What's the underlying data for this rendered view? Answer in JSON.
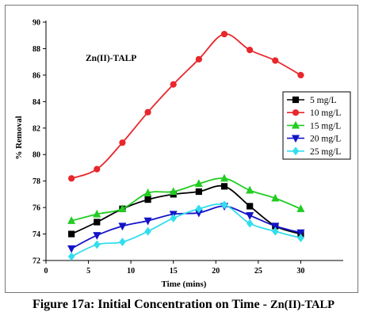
{
  "chart_data": {
    "type": "line",
    "annotation": "Zn(II)-TALP",
    "xlabel": "Time (mins)",
    "ylabel": "% Removal",
    "xlim": [
      0,
      35
    ],
    "ylim": [
      72,
      90
    ],
    "xticks": [
      0,
      5,
      10,
      15,
      20,
      25,
      30
    ],
    "yticks": [
      72,
      74,
      76,
      78,
      80,
      82,
      84,
      86,
      88,
      90
    ],
    "grid": false,
    "legend_position": "right",
    "series": [
      {
        "name": "5 mg/L",
        "color": "#000000",
        "marker": "square",
        "x": [
          3,
          6,
          9,
          12,
          15,
          18,
          21,
          24,
          27,
          30
        ],
        "y": [
          74.0,
          74.9,
          75.9,
          76.6,
          77.0,
          77.2,
          77.6,
          76.1,
          74.6,
          74.0
        ]
      },
      {
        "name": "10 mg/L",
        "color": "#e8262b",
        "marker": "circle",
        "x": [
          3,
          6,
          9,
          12,
          15,
          18,
          21,
          24,
          27,
          30
        ],
        "y": [
          78.2,
          78.9,
          80.9,
          83.2,
          85.3,
          87.2,
          89.1,
          87.9,
          87.1,
          86.0
        ]
      },
      {
        "name": "15 mg/L",
        "color": "#22cc22",
        "marker": "triangle-up",
        "x": [
          3,
          6,
          9,
          12,
          15,
          18,
          21,
          24,
          27,
          30
        ],
        "y": [
          75.0,
          75.5,
          75.9,
          77.1,
          77.2,
          77.8,
          78.2,
          77.3,
          76.7,
          75.9
        ]
      },
      {
        "name": "20 mg/L",
        "color": "#1414c8",
        "marker": "triangle-down",
        "x": [
          3,
          6,
          9,
          12,
          15,
          18,
          21,
          24,
          27,
          30
        ],
        "y": [
          72.9,
          73.9,
          74.6,
          75.0,
          75.5,
          75.6,
          76.1,
          75.4,
          74.6,
          74.1
        ]
      },
      {
        "name": "25 mg/L",
        "color": "#33ddee",
        "marker": "diamond",
        "x": [
          3,
          6,
          9,
          12,
          15,
          18,
          21,
          24,
          27,
          30
        ],
        "y": [
          72.3,
          73.2,
          73.4,
          74.2,
          75.2,
          75.9,
          76.2,
          74.8,
          74.2,
          73.7
        ]
      }
    ]
  },
  "caption": {
    "main": "Figure 17a: Initial Concentration on Time - ",
    "sub": "Zn(II)-TALP"
  }
}
